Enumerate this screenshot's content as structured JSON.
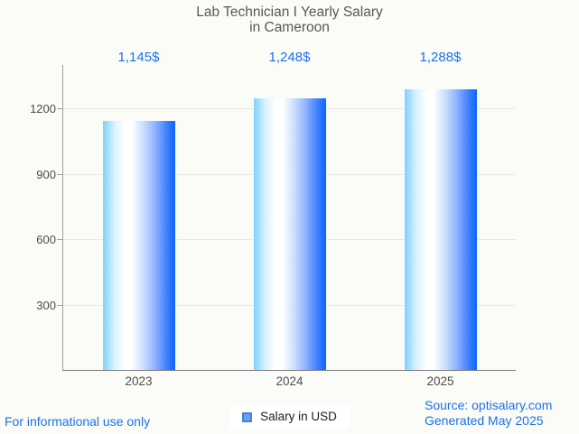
{
  "page": {
    "background": "#fbfbf8"
  },
  "chart_data": {
    "type": "bar",
    "title": "Lab Technician I Yearly Salary in Cameroon",
    "title_lines": [
      "Lab Technician I Yearly Salary",
      "in Cameroon"
    ],
    "categories": [
      "2023",
      "2024",
      "2025"
    ],
    "series": [
      {
        "name": "Salary in USD",
        "values": [
          1145,
          1248,
          1288
        ]
      }
    ],
    "value_labels": [
      "1,145$",
      "1,248$",
      "1,288$"
    ],
    "xlabel": "",
    "ylabel": "",
    "ylim": [
      0,
      1400
    ],
    "yticks": [
      300,
      600,
      900,
      1200
    ],
    "grid": true,
    "legend_position": "bottom"
  },
  "legend": {
    "label": "Salary in USD"
  },
  "footer": {
    "left": "For informational use only",
    "source": "Source: optisalary.com",
    "generated": "Generated May 2025"
  },
  "colors": {
    "background": "#fbfbf8",
    "accent_blue": "#1a73e8",
    "title_gray": "#58585a",
    "axis_label_gray": "#4d4d4d",
    "gridline": "#e8e8e4",
    "axis_line": "#9e9e9e",
    "baseline": "#7a7a7a",
    "bar_gradient": [
      "#7cd3fe",
      "#ffffff",
      "#0b66fb"
    ],
    "legend_swatch_fill": "#63a3ee",
    "legend_swatch_border": "#4584d4"
  }
}
